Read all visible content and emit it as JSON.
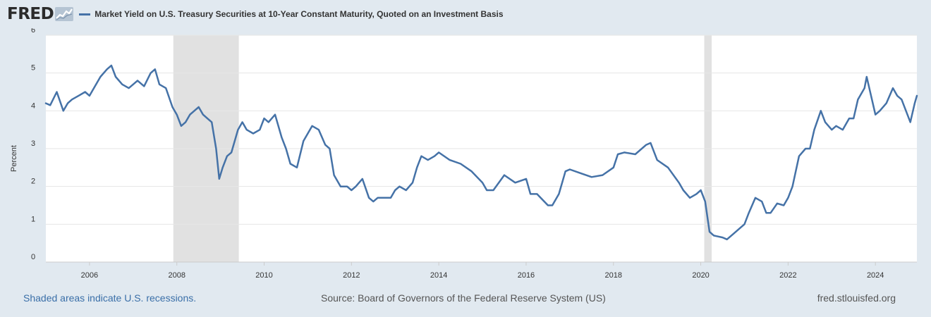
{
  "brand": {
    "logo_text": "FRED",
    "logo_icon": "chart-line-icon"
  },
  "colors": {
    "series": "#4572a7",
    "background": "#e1e9f0",
    "plot": "#ffffff",
    "recession": "#e1e1e1",
    "grid": "#e6e6e6"
  },
  "footer": {
    "recession_note": "Shaded areas indicate U.S. recessions.",
    "source": "Source: Board of Governors of the Federal Reserve System (US)",
    "site": "fred.stlouisfed.org"
  },
  "chart_data": {
    "type": "line",
    "title": "",
    "ylabel": "Percent",
    "xlabel": "",
    "ylim": [
      0,
      6
    ],
    "xlim": [
      2005.0,
      2024.95
    ],
    "y_ticks": [
      0,
      1,
      2,
      3,
      4,
      5,
      6
    ],
    "x_ticks": [
      2006,
      2008,
      2010,
      2012,
      2014,
      2016,
      2018,
      2020,
      2022,
      2024
    ],
    "grid": "horizontal",
    "legend": "top-left",
    "recessions": [
      [
        2007.92,
        2009.42
      ],
      [
        2020.08,
        2020.25
      ]
    ],
    "series": [
      {
        "name": "Market Yield on U.S. Treasury Securities at 10-Year Constant Maturity, Quoted on an Investment Basis",
        "x": [
          2005.0,
          2005.1,
          2005.25,
          2005.4,
          2005.5,
          2005.6,
          2005.75,
          2005.9,
          2006.0,
          2006.1,
          2006.25,
          2006.4,
          2006.5,
          2006.6,
          2006.75,
          2006.9,
          2007.0,
          2007.1,
          2007.25,
          2007.4,
          2007.5,
          2007.6,
          2007.75,
          2007.9,
          2008.0,
          2008.1,
          2008.2,
          2008.3,
          2008.4,
          2008.5,
          2008.6,
          2008.7,
          2008.8,
          2008.9,
          2008.97,
          2009.05,
          2009.15,
          2009.25,
          2009.4,
          2009.5,
          2009.6,
          2009.75,
          2009.9,
          2010.0,
          2010.1,
          2010.25,
          2010.4,
          2010.5,
          2010.6,
          2010.75,
          2010.9,
          2011.0,
          2011.1,
          2011.25,
          2011.4,
          2011.5,
          2011.6,
          2011.75,
          2011.9,
          2012.0,
          2012.1,
          2012.25,
          2012.4,
          2012.5,
          2012.6,
          2012.75,
          2012.9,
          2013.0,
          2013.1,
          2013.25,
          2013.4,
          2013.5,
          2013.6,
          2013.75,
          2013.9,
          2014.0,
          2014.25,
          2014.5,
          2014.75,
          2015.0,
          2015.1,
          2015.25,
          2015.5,
          2015.75,
          2016.0,
          2016.1,
          2016.25,
          2016.5,
          2016.6,
          2016.75,
          2016.9,
          2017.0,
          2017.25,
          2017.5,
          2017.75,
          2018.0,
          2018.1,
          2018.25,
          2018.5,
          2018.75,
          2018.85,
          2019.0,
          2019.25,
          2019.5,
          2019.6,
          2019.75,
          2019.9,
          2020.0,
          2020.1,
          2020.2,
          2020.3,
          2020.5,
          2020.6,
          2020.75,
          2020.9,
          2021.0,
          2021.1,
          2021.25,
          2021.4,
          2021.5,
          2021.6,
          2021.75,
          2021.9,
          2022.0,
          2022.1,
          2022.25,
          2022.4,
          2022.5,
          2022.6,
          2022.75,
          2022.85,
          2023.0,
          2023.1,
          2023.25,
          2023.4,
          2023.5,
          2023.6,
          2023.75,
          2023.8,
          2023.9,
          2024.0,
          2024.1,
          2024.25,
          2024.4,
          2024.5,
          2024.6,
          2024.7,
          2024.8,
          2024.9,
          2024.95
        ],
        "values": [
          4.2,
          4.15,
          4.5,
          4.0,
          4.2,
          4.3,
          4.4,
          4.5,
          4.4,
          4.6,
          4.9,
          5.1,
          5.2,
          4.9,
          4.7,
          4.6,
          4.7,
          4.8,
          4.65,
          5.0,
          5.1,
          4.7,
          4.6,
          4.1,
          3.9,
          3.6,
          3.7,
          3.9,
          4.0,
          4.1,
          3.9,
          3.8,
          3.7,
          3.0,
          2.2,
          2.5,
          2.8,
          2.9,
          3.5,
          3.7,
          3.5,
          3.4,
          3.5,
          3.8,
          3.7,
          3.9,
          3.3,
          3.0,
          2.6,
          2.5,
          3.2,
          3.4,
          3.6,
          3.5,
          3.1,
          3.0,
          2.3,
          2.0,
          2.0,
          1.9,
          2.0,
          2.2,
          1.7,
          1.6,
          1.7,
          1.7,
          1.7,
          1.9,
          2.0,
          1.9,
          2.1,
          2.5,
          2.8,
          2.7,
          2.8,
          2.9,
          2.7,
          2.6,
          2.4,
          2.1,
          1.9,
          1.9,
          2.3,
          2.1,
          2.2,
          1.8,
          1.8,
          1.5,
          1.5,
          1.8,
          2.4,
          2.45,
          2.35,
          2.25,
          2.3,
          2.5,
          2.85,
          2.9,
          2.85,
          3.1,
          3.15,
          2.7,
          2.5,
          2.1,
          1.9,
          1.7,
          1.8,
          1.9,
          1.6,
          0.8,
          0.7,
          0.65,
          0.6,
          0.75,
          0.9,
          1.0,
          1.3,
          1.7,
          1.6,
          1.3,
          1.3,
          1.55,
          1.5,
          1.7,
          2.0,
          2.8,
          3.0,
          3.0,
          3.5,
          4.0,
          3.7,
          3.5,
          3.6,
          3.5,
          3.8,
          3.8,
          4.3,
          4.6,
          4.9,
          4.4,
          3.9,
          4.0,
          4.2,
          4.6,
          4.4,
          4.3,
          4.0,
          3.7,
          4.2,
          4.4
        ]
      }
    ]
  }
}
